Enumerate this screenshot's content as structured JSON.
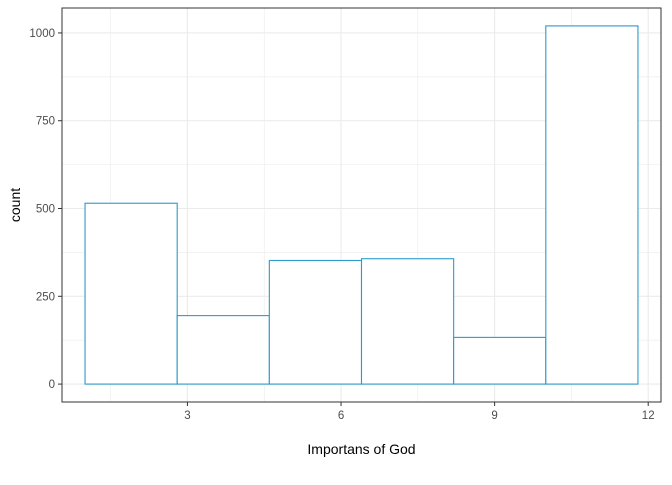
{
  "chart_data": {
    "type": "bar",
    "subtype": "histogram",
    "xlabel": "Importans of God",
    "ylabel": "count",
    "bins": [
      {
        "x0": 1.0,
        "x1": 2.8,
        "count": 515
      },
      {
        "x0": 2.8,
        "x1": 4.6,
        "count": 195
      },
      {
        "x0": 4.6,
        "x1": 6.4,
        "count": 352
      },
      {
        "x0": 6.4,
        "x1": 8.2,
        "count": 357
      },
      {
        "x0": 8.2,
        "x1": 10.0,
        "count": 133
      },
      {
        "x0": 10.0,
        "x1": 11.8,
        "count": 1020
      }
    ],
    "xlim": [
      0.55,
      12.25
    ],
    "ylim": [
      -51,
      1071
    ],
    "xticks": [
      3,
      6,
      9,
      12
    ],
    "xtick_labels": [
      "3",
      "6",
      "9",
      "12"
    ],
    "yticks": [
      0,
      250,
      500,
      750,
      1000
    ],
    "ytick_labels": [
      "0",
      "250",
      "500",
      "750",
      "1000"
    ],
    "grid": true,
    "bar_outline_color": "#2b9bc9",
    "bar_fill_color": "#ffffff",
    "grid_color": "#ebebeb",
    "panel_border_color": "#333333"
  }
}
